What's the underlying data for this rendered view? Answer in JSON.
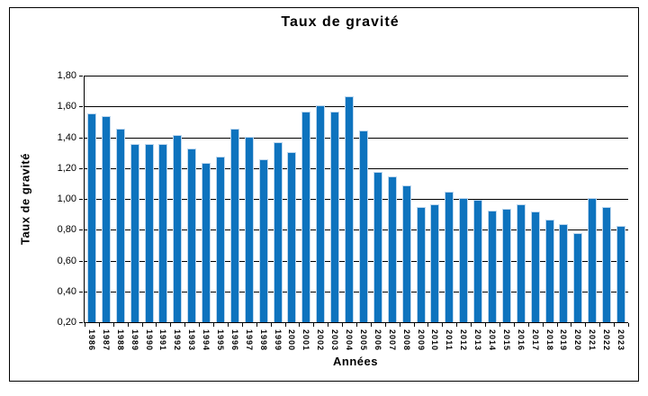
{
  "chart_data": {
    "type": "bar",
    "title": "Taux de gravité",
    "xlabel": "Années",
    "ylabel": "Taux de gravité",
    "ylim": [
      0.2,
      1.8
    ],
    "grid": true,
    "legend": "none",
    "bar_color": "#0e73be",
    "bar_edge_color": "#bdd7ee",
    "grid_color": "#000000",
    "axis_color": "#000000",
    "y_ticks": [
      {
        "value": 0.2,
        "label": "0,20"
      },
      {
        "value": 0.4,
        "label": "0,40"
      },
      {
        "value": 0.6,
        "label": "0,60"
      },
      {
        "value": 0.8,
        "label": "0,80"
      },
      {
        "value": 1.0,
        "label": "1,00"
      },
      {
        "value": 1.2,
        "label": "1,20"
      },
      {
        "value": 1.4,
        "label": "1,40"
      },
      {
        "value": 1.6,
        "label": "1,60"
      },
      {
        "value": 1.8,
        "label": "1,80"
      }
    ],
    "categories": [
      "1986",
      "1987",
      "1988",
      "1989",
      "1990",
      "1991",
      "1992",
      "1993",
      "1994",
      "1995",
      "1996",
      "1997",
      "1998",
      "1999",
      "2000",
      "2001",
      "2002",
      "2003",
      "2004",
      "2005",
      "2006",
      "2007",
      "2008",
      "2009",
      "2010",
      "2011",
      "2012",
      "2013",
      "2014",
      "2015",
      "2016",
      "2017",
      "2018",
      "2019",
      "2020",
      "2021",
      "2022",
      "2023"
    ],
    "values": [
      1.55,
      1.53,
      1.45,
      1.35,
      1.35,
      1.35,
      1.41,
      1.32,
      1.23,
      1.27,
      1.45,
      1.4,
      1.25,
      1.36,
      1.3,
      1.56,
      1.6,
      1.56,
      1.66,
      1.44,
      1.17,
      1.14,
      1.08,
      0.94,
      0.96,
      1.04,
      1.0,
      0.99,
      0.92,
      0.93,
      0.96,
      0.91,
      0.86,
      0.83,
      0.77,
      1.0,
      0.94,
      0.82
    ]
  }
}
